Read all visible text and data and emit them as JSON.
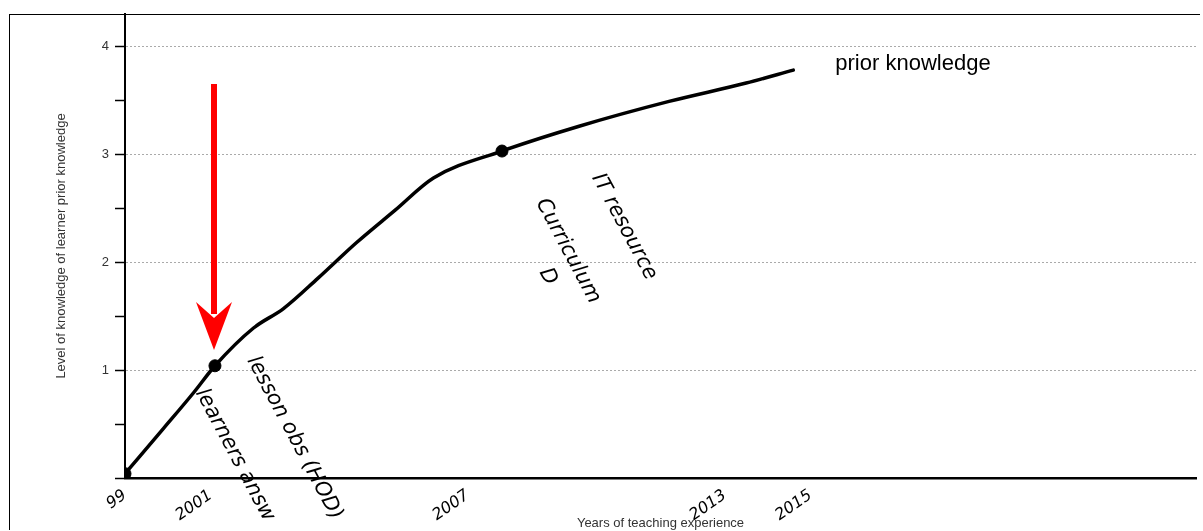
{
  "chart_data": {
    "type": "line",
    "xlabel": "Years of teaching experience",
    "ylabel": "Level of knowledge of learner prior knowledge",
    "xlim": [
      1999,
      2024
    ],
    "xticks": [
      {
        "value": 1999,
        "label": "99"
      },
      2001,
      2007,
      2013,
      2015
    ],
    "ylim": [
      0,
      4.3
    ],
    "yticks": [
      {
        "value": 0,
        "label": null
      },
      {
        "value": 0.5,
        "label": null
      },
      1,
      {
        "value": 1.5,
        "label": null
      },
      2,
      {
        "value": 2.5,
        "label": null
      },
      3,
      {
        "value": 3.5,
        "label": null
      },
      4
    ],
    "grid": "y",
    "line_style": "solid",
    "marker": "none",
    "series": [
      {
        "name": "prior knowledge",
        "color": "#000000",
        "x": [
          1999,
          1999.9,
          2000.6,
          2001.1,
          2002.0,
          2002.7,
          2003.5,
          2004.4,
          2005.3,
          2006.2,
          2007.8,
          2009.6,
          2011.7,
          2013.5,
          2014.6
        ],
        "values": [
          0.04,
          0.46,
          0.79,
          1.04,
          1.39,
          1.57,
          1.85,
          2.18,
          2.48,
          2.78,
          3.03,
          3.26,
          3.49,
          3.66,
          3.78
        ]
      },
      {
        "type": "scatter",
        "color": "#000000",
        "marker": "circle",
        "x": [
          1999,
          2001.1,
          2007.8
        ],
        "values": [
          0.04,
          1.04,
          3.03
        ]
      }
    ],
    "annotations": [
      "learners answ",
      "lesson obs (HOD)",
      "Curriculum",
      "IT resource",
      "D"
    ]
  }
}
